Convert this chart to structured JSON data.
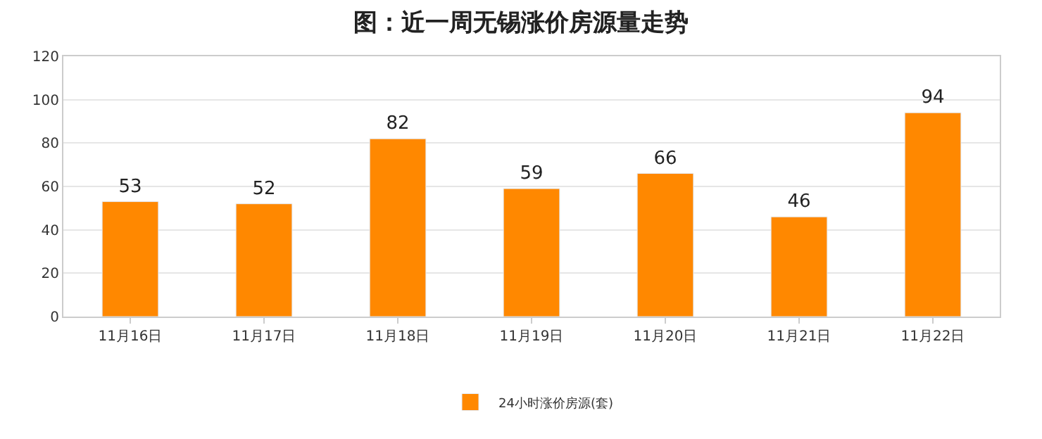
{
  "chart_data": {
    "type": "bar",
    "title": "图：近一周无锡涨价房源量走势",
    "categories": [
      "11月16日",
      "11月17日",
      "11月18日",
      "11月19日",
      "11月20日",
      "11月21日",
      "11月22日"
    ],
    "series": [
      {
        "name": "24小时涨价房源(套)",
        "color": "#ff8800",
        "values": [
          53,
          52,
          82,
          59,
          66,
          46,
          94
        ]
      }
    ],
    "ylim": [
      0,
      120
    ],
    "yticks": [
      0,
      20,
      40,
      60,
      80,
      100,
      120
    ],
    "grid": "y",
    "legend": "bottom",
    "data_labels": true
  }
}
